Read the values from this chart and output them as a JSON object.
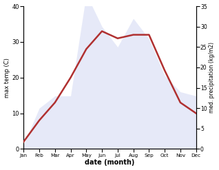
{
  "months": [
    "Jan",
    "Feb",
    "Mar",
    "Apr",
    "May",
    "Jun",
    "Jul",
    "Aug",
    "Sep",
    "Oct",
    "Nov",
    "Dec"
  ],
  "month_indices": [
    1,
    2,
    3,
    4,
    5,
    6,
    7,
    8,
    9,
    10,
    11,
    12
  ],
  "temperature": [
    2,
    8,
    13,
    20,
    28,
    33,
    31,
    32,
    32,
    22,
    13,
    10
  ],
  "precipitation": [
    1,
    10,
    13,
    13,
    38,
    30,
    25,
    32,
    27,
    18,
    14,
    13
  ],
  "temp_color": "#b03030",
  "precip_fill_color": "#c8d0f0",
  "temp_ylim": [
    0,
    40
  ],
  "precip_ylim": [
    0,
    35
  ],
  "temp_yticks": [
    0,
    10,
    20,
    30,
    40
  ],
  "precip_yticks": [
    0,
    5,
    10,
    15,
    20,
    25,
    30,
    35
  ],
  "xlabel": "date (month)",
  "ylabel_left": "max temp (C)",
  "ylabel_right": "med. precipitation (kg/m2)",
  "bg_color": "#ffffff",
  "temp_linewidth": 1.8,
  "precip_alpha": 0.45
}
